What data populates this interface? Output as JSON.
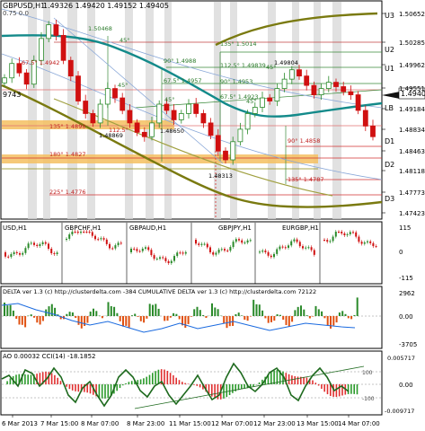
{
  "main": {
    "title": "GBPUSD,H1",
    "ohlc": "1.49326 1.49420 1.49152 1.49405",
    "overlay_label": "0.75 0.0",
    "left_value": "9743",
    "current_price": "1.49405",
    "price_ticks": [
      "1.50652",
      "1.50285",
      "1.49962",
      "1.49551",
      "1.49184",
      "1.48834",
      "1.48463",
      "1.48118",
      "1.47773",
      "1.47423"
    ],
    "level_labels": [
      "U3",
      "U2",
      "U1",
      "LB",
      "D1",
      "D2",
      "D3"
    ],
    "annotations": [
      "1.50468",
      "1.49804",
      "1.48650",
      "1.48313",
      "1.48869",
      "135° 1.5014",
      "112.5° 1.49839",
      "90° 1.4988",
      "67.5° 1.4957",
      "90° 1.4953",
      "67.5° 1.4923",
      "45°",
      "45°",
      "45°",
      "45°",
      "45°",
      "67.5° 1.4942",
      "112.5°",
      "135° 1.4898",
      "180° 1.4827",
      "225° 1.4776",
      "90° 1.4858",
      "135° 1.4787"
    ]
  },
  "correlation": {
    "symbols": [
      "GBPCHF,H1",
      "GBPAUD,H1",
      "GBPJPY,H1",
      "EURGBP,H1"
    ],
    "left_label": "USD,H1",
    "scale": [
      "115",
      "0",
      "-115"
    ]
  },
  "delta": {
    "title": "DELTA ver 1.3 (c) http://clusterdelta.com  -384  CUMULATIVE DELTA ver 1.3 (c) http://clusterdelta.com  72122",
    "scale": [
      "2962",
      "0.00",
      "-3705"
    ]
  },
  "ao": {
    "title": "AO 0.00032  CCI(14) -18.1852",
    "scale": [
      "0.005717",
      "0.00",
      "-0.009717"
    ],
    "cci_levels": [
      "100",
      "-100"
    ]
  },
  "time_axis": [
    "6 Mar 2013",
    "7 Mar 15:00",
    "8 Mar 07:00",
    "8 Mar 23:00",
    "11 Mar 15:00",
    "12 Mar 07:00",
    "12 Mar 23:00",
    "13 Mar 15:00",
    "14 Mar 07:00"
  ],
  "colors": {
    "bull": "#2a8a2a",
    "bear": "#d01010",
    "teal_ma": "#138a8a",
    "olive_ma": "#7a7a10",
    "delta_line": "#1a6adf",
    "orange_zone": "#f5c060",
    "price_marker": "#ffffff"
  },
  "chart_data": {
    "type": "candlestick",
    "symbol": "GBPUSD",
    "timeframe": "H1",
    "ylim": [
      1.4742,
      1.5065
    ],
    "close_series_approx": [
      1.4962,
      1.4985,
      1.497,
      1.4952,
      1.499,
      1.5025,
      1.5047,
      1.503,
      1.499,
      1.4965,
      1.4925,
      1.4905,
      1.489,
      1.492,
      1.4945,
      1.493,
      1.491,
      1.489,
      1.4875,
      1.4868,
      1.489,
      1.492,
      1.491,
      1.4895,
      1.4905,
      1.492,
      1.4905,
      1.489,
      1.487,
      1.4845,
      1.4831,
      1.486,
      1.488,
      1.4905,
      1.4915,
      1.493,
      1.4925,
      1.4945,
      1.496,
      1.4975,
      1.4965,
      1.495,
      1.4935,
      1.4945,
      1.4955,
      1.4948,
      1.494,
      1.4935,
      1.491,
      1.4885,
      1.4868
    ]
  }
}
